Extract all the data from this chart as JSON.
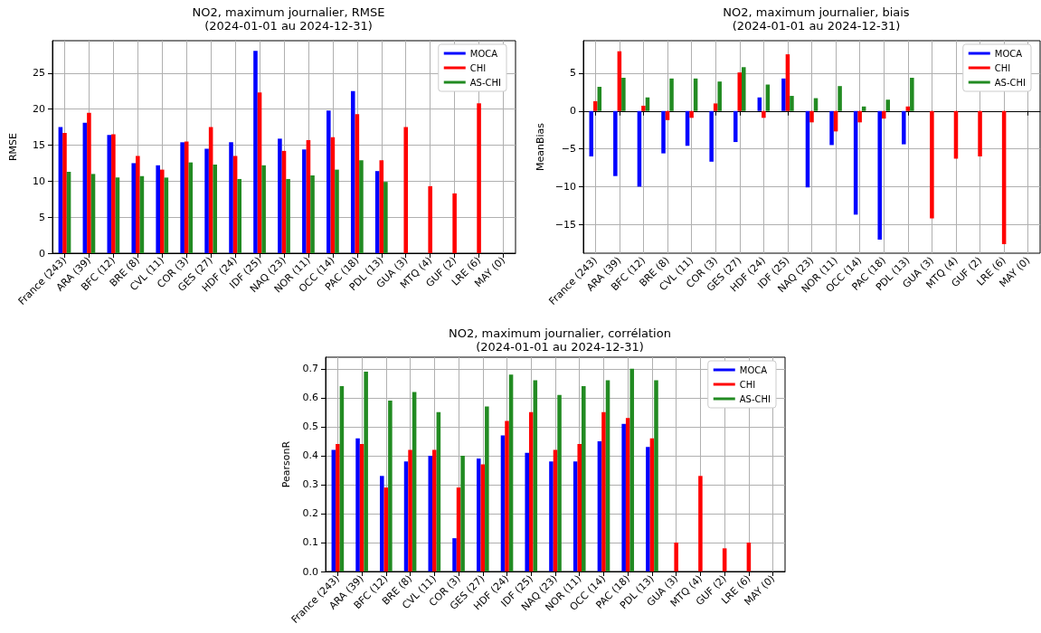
{
  "chart_data": [
    {
      "type": "bar",
      "title": "NO2, maximum journalier, RMSE",
      "subtitle": "(2024-01-01 au 2024-12-31)",
      "ylabel": "RMSE",
      "categories": [
        "France (243)",
        "ARA (39)",
        "BFC (12)",
        "BRE (8)",
        "CVL (11)",
        "COR (3)",
        "GES (27)",
        "HDF (24)",
        "IDF (25)",
        "NAQ (23)",
        "NOR (11)",
        "OCC (14)",
        "PAC (18)",
        "PDL (13)",
        "GUA (3)",
        "MTQ (4)",
        "GUF (2)",
        "LRE (6)",
        "MAY (0)"
      ],
      "series": [
        {
          "name": "MOCA",
          "color": "#0000ff",
          "values": [
            17.5,
            18.1,
            16.4,
            12.5,
            12.2,
            15.4,
            14.5,
            15.4,
            28.1,
            15.9,
            14.4,
            19.8,
            22.5,
            11.4,
            null,
            null,
            null,
            null,
            null
          ]
        },
        {
          "name": "CHI",
          "color": "#ff0000",
          "values": [
            16.7,
            19.5,
            16.5,
            13.5,
            11.6,
            15.5,
            17.5,
            13.5,
            22.3,
            14.2,
            15.7,
            16.1,
            19.3,
            12.9,
            17.5,
            9.3,
            8.3,
            20.8,
            null
          ]
        },
        {
          "name": "AS-CHI",
          "color": "#228b22",
          "values": [
            11.3,
            11.0,
            10.5,
            10.7,
            10.5,
            12.6,
            12.3,
            10.3,
            12.2,
            10.3,
            10.8,
            11.6,
            12.9,
            9.9,
            null,
            null,
            null,
            null,
            null
          ]
        }
      ],
      "ylim": [
        0,
        29.5
      ],
      "yticks": [
        0,
        5,
        10,
        15,
        20,
        25
      ],
      "grid": true,
      "legend": "top right"
    },
    {
      "type": "bar",
      "title": "NO2, maximum journalier, biais",
      "subtitle": "(2024-01-01 au 2024-12-31)",
      "ylabel": "MeanBias",
      "categories": [
        "France (243)",
        "ARA (39)",
        "BFC (12)",
        "BRE (8)",
        "CVL (11)",
        "COR (3)",
        "GES (27)",
        "HDF (24)",
        "IDF (25)",
        "NAQ (23)",
        "NOR (11)",
        "OCC (14)",
        "PAC (18)",
        "PDL (13)",
        "GUA (3)",
        "MTQ (4)",
        "GUF (2)",
        "LRE (6)",
        "MAY (0)"
      ],
      "series": [
        {
          "name": "MOCA",
          "color": "#0000ff",
          "values": [
            -6.0,
            -8.6,
            -10.0,
            -5.6,
            -4.6,
            -6.7,
            -4.1,
            1.8,
            4.3,
            -10.1,
            -4.5,
            -13.7,
            -17.0,
            -4.4,
            null,
            null,
            null,
            null,
            null
          ]
        },
        {
          "name": "CHI",
          "color": "#ff0000",
          "values": [
            1.3,
            7.9,
            0.7,
            -1.2,
            -0.9,
            1.0,
            5.1,
            -0.9,
            7.5,
            -1.5,
            -2.7,
            -1.5,
            -1.0,
            0.6,
            -14.2,
            -6.3,
            -6.0,
            -17.6,
            null
          ]
        },
        {
          "name": "AS-CHI",
          "color": "#228b22",
          "values": [
            3.2,
            4.4,
            1.8,
            4.3,
            4.3,
            3.9,
            5.8,
            3.5,
            2.0,
            1.7,
            3.3,
            0.6,
            1.5,
            4.4,
            null,
            null,
            null,
            null,
            null
          ]
        }
      ],
      "ylim": [
        -18.8,
        9.3
      ],
      "yticks": [
        {
          "value": -15,
          "label": "−15"
        },
        {
          "value": -10,
          "label": "−10"
        },
        {
          "value": -5,
          "label": "−5"
        },
        0,
        5
      ],
      "grid": true,
      "legend": "top right"
    },
    {
      "type": "bar",
      "title": "NO2, maximum journalier, corrélation",
      "subtitle": "(2024-01-01 au 2024-12-31)",
      "ylabel": "PearsonR",
      "categories": [
        "France (243)",
        "ARA (39)",
        "BFC (12)",
        "BRE (8)",
        "CVL (11)",
        "COR (3)",
        "GES (27)",
        "HDF (24)",
        "IDF (25)",
        "NAQ (23)",
        "NOR (11)",
        "OCC (14)",
        "PAC (18)",
        "PDL (13)",
        "GUA (3)",
        "MTQ (4)",
        "GUF (2)",
        "LRE (6)",
        "MAY (0)"
      ],
      "series": [
        {
          "name": "MOCA",
          "color": "#0000ff",
          "values": [
            0.42,
            0.46,
            0.33,
            0.38,
            0.4,
            0.115,
            0.39,
            0.47,
            0.41,
            0.38,
            0.38,
            0.45,
            0.51,
            0.43,
            null,
            null,
            null,
            null,
            null
          ]
        },
        {
          "name": "CHI",
          "color": "#ff0000",
          "values": [
            0.44,
            0.44,
            0.29,
            0.42,
            0.42,
            0.29,
            0.37,
            0.52,
            0.55,
            0.42,
            0.44,
            0.55,
            0.53,
            0.46,
            0.1,
            0.33,
            0.08,
            0.1,
            null
          ]
        },
        {
          "name": "AS-CHI",
          "color": "#228b22",
          "values": [
            0.64,
            0.69,
            0.59,
            0.62,
            0.55,
            0.4,
            0.57,
            0.68,
            0.66,
            0.61,
            0.64,
            0.66,
            0.7,
            0.66,
            null,
            null,
            null,
            null,
            null
          ]
        }
      ],
      "ylim": [
        0,
        0.74
      ],
      "yticks": [
        {
          "value": 0,
          "label": "0.0"
        },
        0.1,
        0.2,
        0.3,
        0.4,
        0.5,
        0.6,
        0.7
      ],
      "grid": true,
      "legend": "top right"
    }
  ]
}
